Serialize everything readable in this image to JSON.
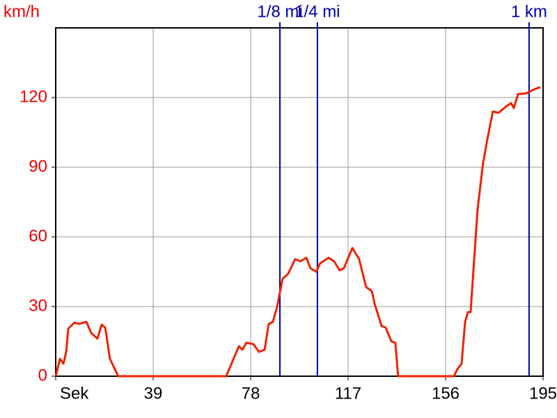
{
  "chart_data": {
    "type": "line",
    "y_label": "km/h",
    "x": [
      0,
      1.7,
      3.1,
      4.2,
      5,
      7.5,
      9.2,
      12.3,
      14.2,
      16.7,
      18.4,
      19.8,
      21.7,
      25,
      68.2,
      73.3,
      74.7,
      76.3,
      79.1,
      81.3,
      83.6,
      85.2,
      86.9,
      88.6,
      90.8,
      93,
      95.8,
      98,
      100.3,
      101.9,
      104.2,
      105.8,
      109.2,
      111.4,
      113.6,
      115.3,
      118.7,
      121.4,
      124.2,
      126.5,
      127.6,
      130.4,
      132,
      134.3,
      135.9,
      137,
      159.3,
      160.7,
      162.4,
      163.8,
      164.9,
      166,
      168.8,
      171,
      172.7,
      174.9,
      177.2,
      180.5,
      182.2,
      183.3,
      185,
      188.3,
      191.6,
      193.9
    ],
    "values": [
      0,
      7.5,
      5.4,
      10.5,
      20.4,
      23.1,
      22.5,
      23.4,
      18.6,
      16.2,
      22.2,
      21,
      7.5,
      0,
      0,
      12.9,
      11.4,
      14.4,
      13.8,
      10.5,
      11.4,
      22.5,
      23.4,
      30,
      42,
      44.1,
      50.4,
      49.5,
      51,
      46.5,
      45,
      48.6,
      51,
      49.5,
      45.6,
      46.5,
      55.2,
      50.4,
      38.4,
      36.6,
      31.2,
      21.6,
      21,
      15,
      14.4,
      0,
      0,
      3,
      5.4,
      23.4,
      27.6,
      27.6,
      72,
      91.8,
      102,
      114,
      113.4,
      116.4,
      117.6,
      115.5,
      121.5,
      121.8,
      123.6,
      124.5
    ],
    "color": "#ee2200",
    "xlim": [
      0,
      195
    ],
    "ylim": [
      0,
      150
    ],
    "xticks": [
      {
        "value": 0,
        "label": "Sek"
      },
      39,
      78,
      117,
      156,
      195
    ],
    "yticks": [
      0,
      30,
      60,
      90,
      120
    ],
    "grid": true,
    "axis_label_color": "#ee0000",
    "annotations": [
      {
        "label": "1/8 mi",
        "x": 89.7
      },
      {
        "label": "1/4 mi",
        "x": 104.7
      },
      {
        "label": "1 km",
        "x": 189.4
      }
    ],
    "annotation_color": "#0000aa"
  }
}
